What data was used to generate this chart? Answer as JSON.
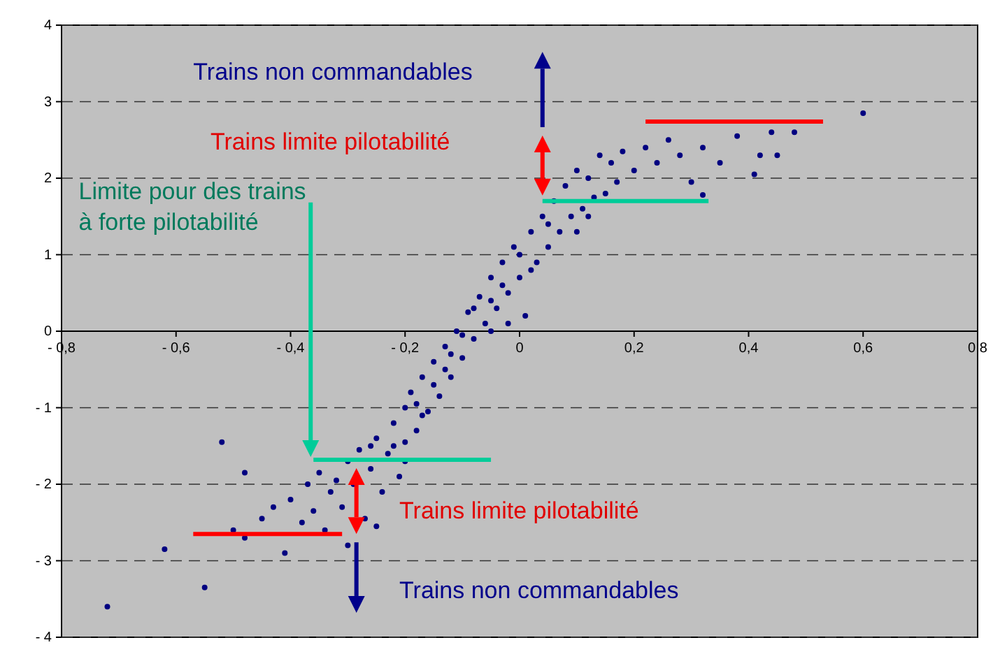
{
  "chart_data": {
    "type": "scatter",
    "xlim": [
      -0.8,
      0.8
    ],
    "xticks": [
      {
        "value": -0.8,
        "label": "- 0,8"
      },
      {
        "value": -0.6,
        "label": "- 0,6"
      },
      {
        "value": -0.4,
        "label": "- 0,4"
      },
      {
        "value": -0.2,
        "label": "- 0,2"
      },
      0,
      {
        "value": 0.2,
        "label": "0,2"
      },
      {
        "value": 0.4,
        "label": "0,4"
      },
      {
        "value": 0.6,
        "label": "0,6"
      },
      {
        "value": 0.8,
        "label": "0,8"
      }
    ],
    "ylim": [
      -4,
      4
    ],
    "yticks": [
      {
        "value": -4,
        "label": "- 4"
      },
      {
        "value": -3,
        "label": "- 3"
      },
      {
        "value": -2,
        "label": "- 2"
      },
      {
        "value": -1,
        "label": "- 1"
      },
      0,
      1,
      2,
      3,
      4
    ],
    "grid": "y",
    "series": [
      {
        "marker": "circle",
        "color": "#000080",
        "x": [
          -0.72,
          -0.62,
          -0.55,
          -0.52,
          -0.48,
          -0.5,
          -0.48,
          -0.45,
          -0.43,
          -0.41,
          -0.4,
          -0.38,
          -0.37,
          -0.36,
          -0.35,
          -0.34,
          -0.33,
          -0.32,
          -0.31,
          -0.3,
          -0.29,
          -0.28,
          -0.27,
          -0.26,
          -0.25,
          -0.24,
          -0.23,
          -0.22,
          -0.21,
          -0.2,
          -0.2,
          -0.19,
          -0.18,
          -0.17,
          -0.16,
          -0.15,
          -0.14,
          -0.13,
          -0.12,
          -0.11,
          -0.1,
          -0.09,
          -0.08,
          -0.07,
          -0.06,
          -0.05,
          -0.04,
          -0.03,
          -0.02,
          -0.01,
          0.0,
          0.01,
          0.02,
          0.03,
          0.04,
          0.05,
          0.06,
          0.07,
          0.08,
          0.09,
          0.1,
          0.11,
          0.12,
          0.13,
          0.14,
          0.15,
          0.16,
          0.17,
          0.18,
          0.2,
          0.22,
          0.24,
          0.26,
          0.28,
          0.3,
          0.32,
          0.35,
          0.38,
          0.42,
          0.44,
          0.45,
          0.48,
          0.6,
          -0.25,
          -0.3,
          -0.18,
          -0.15,
          -0.12,
          -0.1,
          -0.08,
          -0.05,
          -0.03,
          0.0,
          0.02,
          0.05,
          -0.22,
          -0.26,
          -0.2,
          0.1,
          0.12,
          -0.13,
          -0.17,
          -0.02,
          -0.05,
          0.41,
          0.32
        ],
        "values": [
          -3.6,
          -2.85,
          -3.35,
          -1.45,
          -1.85,
          -2.6,
          -2.7,
          -2.45,
          -2.3,
          -2.9,
          -2.2,
          -2.5,
          -2.0,
          -2.35,
          -1.85,
          -2.6,
          -2.1,
          -1.95,
          -2.3,
          -1.7,
          -2.0,
          -1.55,
          -2.45,
          -1.8,
          -1.4,
          -2.1,
          -1.6,
          -1.2,
          -1.9,
          -1.0,
          -1.45,
          -0.8,
          -1.3,
          -0.6,
          -1.05,
          -0.4,
          -0.85,
          -0.2,
          -0.6,
          0.0,
          -0.35,
          0.25,
          -0.1,
          0.45,
          0.1,
          0.7,
          0.3,
          0.9,
          0.5,
          1.1,
          0.7,
          0.2,
          1.3,
          0.9,
          1.5,
          1.1,
          1.7,
          1.3,
          1.9,
          1.5,
          2.1,
          1.6,
          2.0,
          1.75,
          2.3,
          1.8,
          2.2,
          1.95,
          2.35,
          2.1,
          2.4,
          2.2,
          2.5,
          2.3,
          1.95,
          2.4,
          2.2,
          2.55,
          2.3,
          2.6,
          2.3,
          2.6,
          2.85,
          -2.55,
          -2.8,
          -0.95,
          -0.7,
          -0.3,
          -0.05,
          0.3,
          0.4,
          0.6,
          1.0,
          0.8,
          1.4,
          -1.5,
          -1.5,
          -1.7,
          1.3,
          1.5,
          -0.5,
          -1.1,
          0.1,
          0.0,
          2.05,
          1.78
        ]
      },
      {
        "type": "line",
        "color": "#ff0000",
        "x": [
          0.22,
          0.53
        ],
        "values": [
          2.74,
          2.74
        ]
      },
      {
        "type": "line",
        "color": "#00cc99",
        "x": [
          0.04,
          0.33
        ],
        "values": [
          1.7,
          1.7
        ]
      },
      {
        "type": "line",
        "color": "#00cc99",
        "x": [
          -0.36,
          -0.05
        ],
        "values": [
          -1.68,
          -1.68
        ]
      },
      {
        "type": "line",
        "color": "#ff0000",
        "x": [
          -0.57,
          -0.31
        ],
        "values": [
          -2.65,
          -2.65
        ]
      }
    ],
    "annotations": [
      "Trains non commandables",
      "Trains limite pilotabilité",
      "Limite pour des trains\nà forte pilotabilité",
      "Trains limite pilotabilité",
      "Trains non commandables"
    ]
  }
}
